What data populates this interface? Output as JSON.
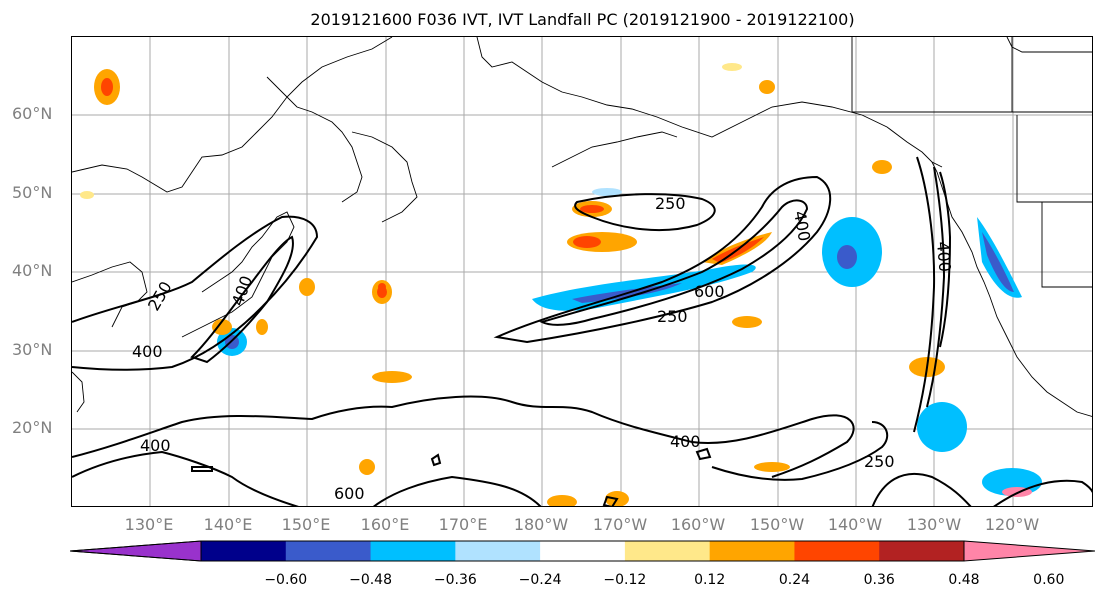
{
  "title": "2019121600 F036 IVT, IVT Landfall PC (2019121900 - 2019122100)",
  "map": {
    "lat_labels": [
      "60°N",
      "50°N",
      "40°N",
      "30°N",
      "20°N"
    ],
    "lon_labels": [
      "130°E",
      "140°E",
      "150°E",
      "160°E",
      "170°E",
      "180°W",
      "170°W",
      "160°W",
      "150°W",
      "140°W",
      "130°W",
      "120°W"
    ],
    "contour_labels": {
      "c250_a": "250",
      "c400_a": "400",
      "c600_a": "600",
      "c250_b": "250",
      "c400_b": "400",
      "c400_c": "400",
      "c400_d": "400",
      "c400_e": "400",
      "c600_b": "600",
      "c250_c": "250",
      "c250_d": "250"
    }
  },
  "colorbar": {
    "colors": [
      "#9932CC",
      "#00008B",
      "#3A5BCB",
      "#00BFFF",
      "#B0E2FF",
      "#FFFFFF",
      "#FFE88A",
      "#FFA500",
      "#FF4500",
      "#B22222",
      "#FF85A8"
    ],
    "ticks": [
      "−0.60",
      "−0.48",
      "−0.36",
      "−0.24",
      "−0.12",
      "0.12",
      "0.24",
      "0.36",
      "0.48",
      "0.60"
    ]
  }
}
